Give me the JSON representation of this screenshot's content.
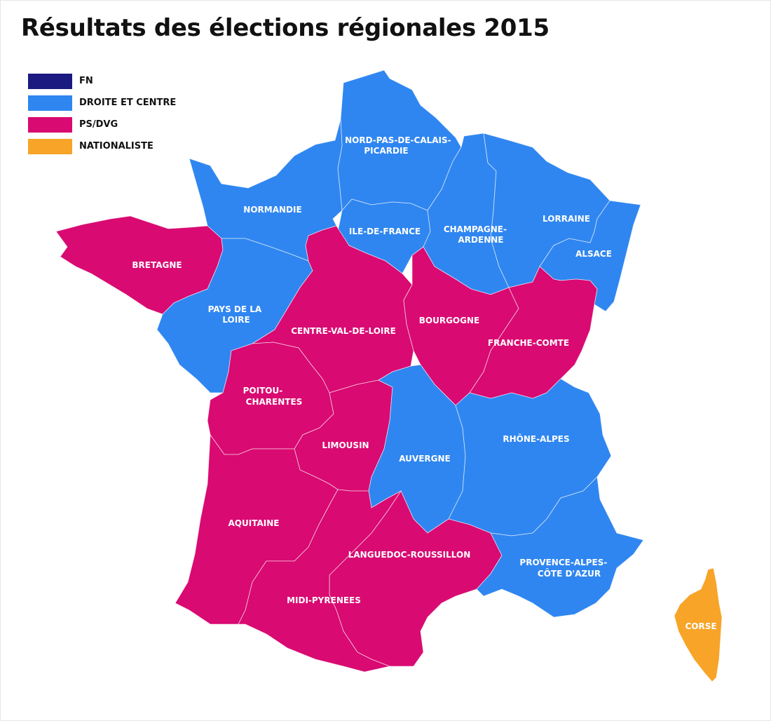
{
  "title": "Résultats des élections régionales 2015",
  "colors": {
    "FN": "#1a1a80",
    "DROITE": "#2f86f0",
    "PS": "#d90a72",
    "NAT": "#f7a428"
  },
  "legend": [
    {
      "key": "FN",
      "label": "FN"
    },
    {
      "key": "DROITE",
      "label": "DROITE ET CENTRE"
    },
    {
      "key": "PS",
      "label": "PS/DVG"
    },
    {
      "key": "NAT",
      "label": "NATIONALISTE"
    }
  ],
  "regions": [
    {
      "id": "nord",
      "party": "DROITE",
      "lines": [
        "NORD-PAS-DE-CALAIS-",
        "PICARDIE"
      ]
    },
    {
      "id": "normandie",
      "party": "DROITE",
      "lines": [
        "NORMANDIE"
      ]
    },
    {
      "id": "idf",
      "party": "DROITE",
      "lines": [
        "ILE-DE-FRANCE"
      ]
    },
    {
      "id": "champagne",
      "party": "DROITE",
      "lines": [
        "CHAMPAGNE-",
        "ARDENNE"
      ]
    },
    {
      "id": "lorraine",
      "party": "DROITE",
      "lines": [
        "LORRAINE"
      ]
    },
    {
      "id": "alsace",
      "party": "DROITE",
      "lines": [
        "ALSACE"
      ]
    },
    {
      "id": "bretagne",
      "party": "PS",
      "lines": [
        "BRETAGNE"
      ]
    },
    {
      "id": "pdl",
      "party": "DROITE",
      "lines": [
        "PAYS DE LA",
        "LOIRE"
      ]
    },
    {
      "id": "centre",
      "party": "PS",
      "lines": [
        "CENTRE-VAL-DE-LOIRE"
      ]
    },
    {
      "id": "bourgogne",
      "party": "PS",
      "lines": [
        "BOURGOGNE"
      ]
    },
    {
      "id": "franche",
      "party": "PS",
      "lines": [
        "FRANCHE-COMTE"
      ]
    },
    {
      "id": "poitou",
      "party": "PS",
      "lines": [
        "POITOU-",
        "CHARENTES"
      ]
    },
    {
      "id": "limousin",
      "party": "PS",
      "lines": [
        "LIMOUSIN"
      ]
    },
    {
      "id": "auvergne",
      "party": "DROITE",
      "lines": [
        "AUVERGNE"
      ]
    },
    {
      "id": "rhone",
      "party": "DROITE",
      "lines": [
        "RHÔNE-ALPES"
      ]
    },
    {
      "id": "aquitaine",
      "party": "PS",
      "lines": [
        "AQUITAINE"
      ]
    },
    {
      "id": "languedoc",
      "party": "PS",
      "lines": [
        "LANGUEDOC-ROUSSILLON"
      ]
    },
    {
      "id": "midi",
      "party": "PS",
      "lines": [
        "MIDI-PYRENEES"
      ]
    },
    {
      "id": "paca",
      "party": "DROITE",
      "lines": [
        "PROVENCE-ALPES-",
        "CÔTE D'AZUR"
      ]
    },
    {
      "id": "corse",
      "party": "NAT",
      "lines": [
        "CORSE"
      ]
    }
  ]
}
